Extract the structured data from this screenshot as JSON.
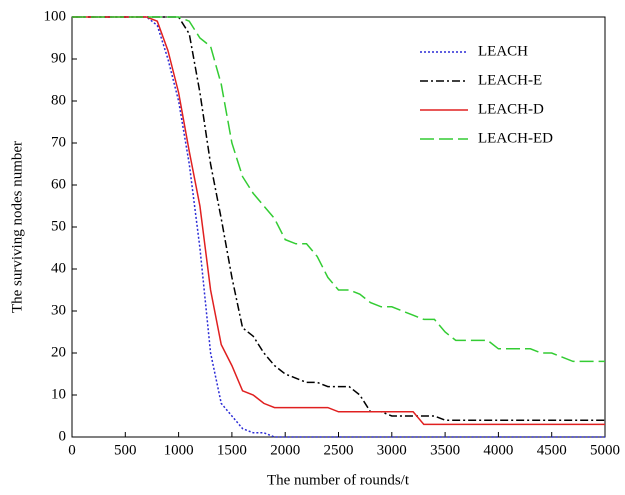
{
  "chart_data": {
    "type": "line",
    "xlabel": "The number of rounds/t",
    "ylabel": "The surviving nodes number",
    "x": [
      0,
      100,
      200,
      300,
      400,
      500,
      600,
      700,
      800,
      900,
      1000,
      1100,
      1200,
      1300,
      1400,
      1500,
      1600,
      1700,
      1800,
      1900,
      2000,
      2100,
      2200,
      2300,
      2400,
      2500,
      2600,
      2700,
      2800,
      2900,
      3000,
      3100,
      3200,
      3300,
      3400,
      3500,
      3600,
      3700,
      3800,
      3900,
      4000,
      4100,
      4200,
      4300,
      4400,
      4500,
      4600,
      4700,
      4800,
      4900,
      5000
    ],
    "series": [
      {
        "name": "LEACH",
        "color": "#2b2bd6",
        "dash": "2 2",
        "values": [
          100,
          100,
          100,
          100,
          100,
          100,
          100,
          100,
          98,
          90,
          80,
          65,
          45,
          20,
          8,
          5,
          2,
          1,
          1,
          0,
          0,
          0,
          0,
          0,
          0,
          0,
          0,
          0,
          0,
          0,
          0,
          0,
          0,
          0,
          0,
          0,
          0,
          0,
          0,
          0,
          0,
          0,
          0,
          0,
          0,
          0,
          0,
          0,
          0,
          0,
          0
        ]
      },
      {
        "name": "LEACH-E",
        "color": "#000000",
        "dash": "8 3 2 3",
        "values": [
          100,
          100,
          100,
          100,
          100,
          100,
          100,
          100,
          100,
          100,
          100,
          96,
          82,
          65,
          52,
          38,
          26,
          24,
          20,
          17,
          15,
          14,
          13,
          13,
          12,
          12,
          12,
          10,
          6,
          6,
          5,
          5,
          5,
          5,
          5,
          4,
          4,
          4,
          4,
          4,
          4,
          4,
          4,
          4,
          4,
          4,
          4,
          4,
          4,
          4,
          4
        ]
      },
      {
        "name": "LEACH-D",
        "color": "#e02020",
        "dash": "",
        "values": [
          100,
          100,
          100,
          100,
          100,
          100,
          100,
          100,
          99,
          92,
          82,
          68,
          55,
          35,
          22,
          17,
          11,
          10,
          8,
          7,
          7,
          7,
          7,
          7,
          7,
          6,
          6,
          6,
          6,
          6,
          6,
          6,
          6,
          3,
          3,
          3,
          3,
          3,
          3,
          3,
          3,
          3,
          3,
          3,
          3,
          3,
          3,
          3,
          3,
          3,
          3
        ]
      },
      {
        "name": "LEACH-ED",
        "color": "#33cc33",
        "dash": "14 5",
        "values": [
          100,
          100,
          100,
          100,
          100,
          100,
          100,
          100,
          100,
          100,
          100,
          99,
          95,
          93,
          84,
          70,
          62,
          58,
          55,
          52,
          47,
          46,
          46,
          43,
          38,
          35,
          35,
          34,
          32,
          31,
          31,
          30,
          29,
          28,
          28,
          25,
          23,
          23,
          23,
          23,
          21,
          21,
          21,
          21,
          20,
          20,
          19,
          18,
          18,
          18,
          18
        ]
      }
    ],
    "xlim": [
      0,
      5000
    ],
    "xticks": [
      0,
      500,
      1000,
      1500,
      2000,
      2500,
      3000,
      3500,
      4000,
      4500,
      5000
    ],
    "ylim": [
      0,
      100
    ],
    "yticks": [
      0,
      10,
      20,
      30,
      40,
      50,
      60,
      70,
      80,
      90,
      100
    ],
    "legend": "upper right"
  }
}
